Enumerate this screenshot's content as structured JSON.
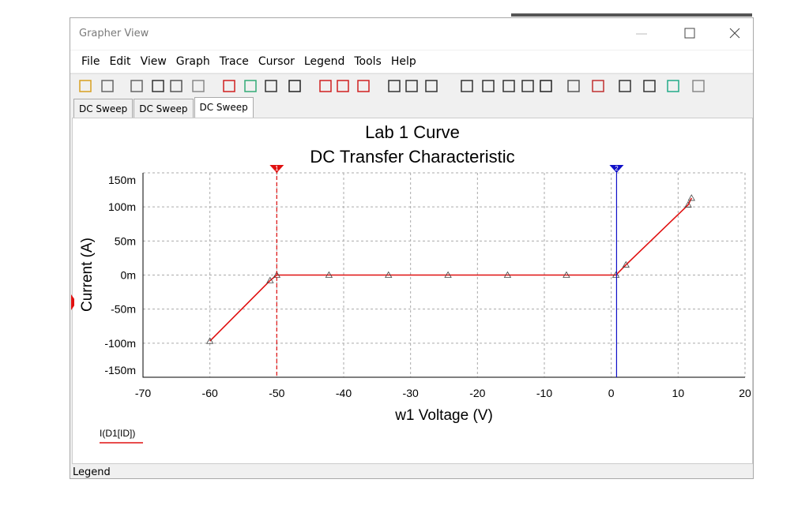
{
  "window": {
    "title": "Grapher View",
    "menu": [
      "File",
      "Edit",
      "View",
      "Graph",
      "Trace",
      "Cursor",
      "Legend",
      "Tools",
      "Help"
    ],
    "tabs": [
      "DC Sweep",
      "DC Sweep",
      "DC Sweep"
    ],
    "status": "Legend"
  },
  "chart_data": {
    "type": "line",
    "title": "Lab 1 Curve",
    "subtitle": "DC Transfer Characteristic",
    "x_label": "w1 Voltage (V)",
    "y_label": "Current (A)",
    "xlim": [
      -70,
      20
    ],
    "xticks": [
      -70,
      -60,
      -50,
      -40,
      -30,
      -20,
      -10,
      0,
      10,
      20
    ],
    "ylim": [
      -0.15,
      0.15
    ],
    "yticks": [
      {
        "value": -0.15,
        "label": "-150m"
      },
      {
        "value": -0.1,
        "label": "-100m"
      },
      {
        "value": -0.05,
        "label": "-50m"
      },
      {
        "value": 0,
        "label": "0m"
      },
      {
        "value": 0.05,
        "label": "50m"
      },
      {
        "value": 0.1,
        "label": "100m"
      },
      {
        "value": 0.15,
        "label": "150m"
      }
    ],
    "grid": true,
    "series": [
      {
        "name": "I(D1[ID])",
        "color": "#e01010",
        "x": [
          -60,
          -51,
          -50,
          -42.2,
          -33.3,
          -24.4,
          -15.5,
          -6.7,
          0.7,
          2.2,
          11.5,
          12
        ],
        "values": [
          -0.097,
          -0.008,
          0,
          0,
          0,
          0,
          0,
          0,
          0,
          0.015,
          0.103,
          0.113
        ]
      }
    ],
    "cursors": [
      {
        "label": "1",
        "x": -50,
        "color": "#e01010"
      },
      {
        "label": "2",
        "x": 0.8,
        "color": "#1010c8"
      }
    ]
  }
}
